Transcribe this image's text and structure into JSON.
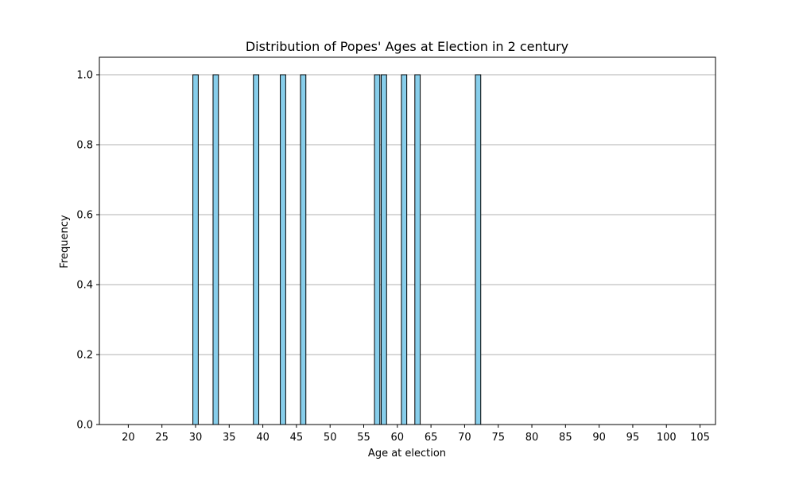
{
  "chart_data": {
    "type": "bar",
    "title": "Distribution of Popes' Ages at Election in 2 century",
    "xlabel": "Age at election",
    "ylabel": "Frequency",
    "xlim": [
      15.7,
      107.3
    ],
    "ylim": [
      0,
      1.05
    ],
    "x_ticks": [
      20,
      25,
      30,
      35,
      40,
      45,
      50,
      55,
      60,
      65,
      70,
      75,
      80,
      85,
      90,
      95,
      100,
      105
    ],
    "y_ticks": [
      0.0,
      0.2,
      0.4,
      0.6,
      0.8,
      1.0
    ],
    "grid": "horizontal",
    "bin_width": 1,
    "histogram_range": [
      18,
      104
    ],
    "bars": [
      {
        "x": 30,
        "value": 1
      },
      {
        "x": 33,
        "value": 1
      },
      {
        "x": 39,
        "value": 1
      },
      {
        "x": 43,
        "value": 1
      },
      {
        "x": 46,
        "value": 1
      },
      {
        "x": 57,
        "value": 1
      },
      {
        "x": 58,
        "value": 1
      },
      {
        "x": 61,
        "value": 1
      },
      {
        "x": 63,
        "value": 1
      },
      {
        "x": 72,
        "value": 1
      }
    ],
    "colors": {
      "bar_fill": "#87ceeb",
      "bar_edge": "#000000",
      "grid": "#b0b0b0",
      "axis": "#000000"
    }
  }
}
